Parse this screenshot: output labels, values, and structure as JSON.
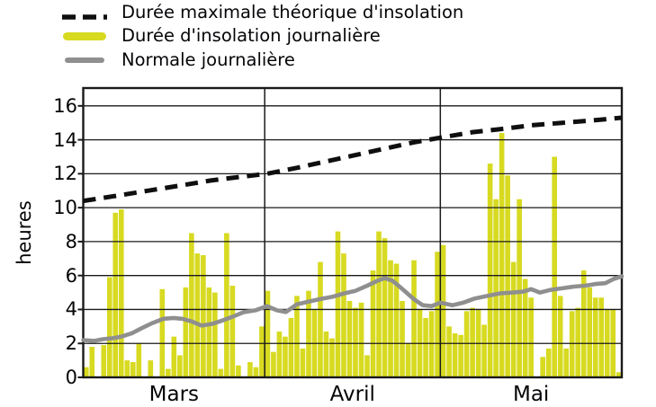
{
  "colors": {
    "background": "#ffffff",
    "bar": "#d7da20",
    "line_normale": "#8f8f8f",
    "line_max": "#0f0f0f",
    "grid": "#1a1a1a",
    "text": "#050508"
  },
  "legend": [
    {
      "id": "max",
      "label": "Durée maximale théorique d'insolation",
      "swatch": "dashed-line"
    },
    {
      "id": "insolation",
      "label": "Durée d'insolation journalière",
      "swatch": "bar"
    },
    {
      "id": "normale",
      "label": "Normale journalière",
      "swatch": "line"
    }
  ],
  "y_axis": {
    "label": "heures",
    "ticks": [
      0,
      2,
      4,
      6,
      8,
      10,
      12,
      14,
      16
    ],
    "max_displayed": 17.05
  },
  "x_axis": {
    "months": [
      {
        "label": "Mars",
        "days": 31
      },
      {
        "label": "Avril",
        "days": 30
      },
      {
        "label": "Mai",
        "days": 31
      }
    ]
  },
  "chart_data": {
    "type": "bar",
    "unit": "heures",
    "title": "",
    "ylim": [
      0,
      17.05
    ],
    "grid": true,
    "legend_position": "top-left",
    "series": [
      {
        "name": "Durée d'insolation journalière",
        "type": "bar",
        "values_by_month": {
          "Mars": [
            0.6,
            1.8,
            0,
            1.9,
            5.9,
            9.7,
            9.9,
            1.0,
            0.9,
            2.0,
            0,
            1.0,
            0,
            5.2,
            0.5,
            2.4,
            1.3,
            5.3,
            8.5,
            7.3,
            7.2,
            5.3,
            5.0,
            0.5,
            8.5,
            5.4,
            0.7,
            0,
            0.9,
            0.6,
            3.0
          ],
          "Avril": [
            5.1,
            1.5,
            2.7,
            2.4,
            3.5,
            4.8,
            1.7,
            5.1,
            4.0,
            6.8,
            2.7,
            2.3,
            8.6,
            7.3,
            4.5,
            4.1,
            4.4,
            1.3,
            6.3,
            8.6,
            8.2,
            6.9,
            6.7,
            4.5,
            2.0,
            6.9,
            4.0,
            3.5,
            3.9,
            7.4
          ],
          "Mai": [
            7.8,
            3.0,
            2.6,
            2.5,
            3.9,
            4.1,
            4.0,
            3.1,
            12.6,
            10.5,
            14.4,
            11.9,
            6.8,
            10.5,
            5.8,
            4.7,
            0,
            1.2,
            1.7,
            13.0,
            4.8,
            1.7,
            3.9,
            4.1,
            6.3,
            5.3,
            4.7,
            4.7,
            4.0,
            4.0,
            0.3
          ]
        }
      },
      {
        "name": "Durée maximale théorique d'insolation",
        "type": "line",
        "style": "dashed",
        "points_day_hours": [
          [
            0,
            10.4
          ],
          [
            5.7,
            10.7
          ],
          [
            11,
            11.0
          ],
          [
            16.5,
            11.3
          ],
          [
            21.8,
            11.6
          ],
          [
            26.5,
            11.8
          ],
          [
            31.4,
            12.0
          ],
          [
            36.5,
            12.35
          ],
          [
            41.1,
            12.7
          ],
          [
            46.5,
            13.1
          ],
          [
            51.8,
            13.5
          ],
          [
            56.5,
            13.85
          ],
          [
            61.4,
            14.15
          ],
          [
            66.5,
            14.45
          ],
          [
            71.8,
            14.65
          ],
          [
            76.5,
            14.85
          ],
          [
            81.8,
            15.0
          ],
          [
            87.2,
            15.15
          ],
          [
            92,
            15.3
          ]
        ]
      },
      {
        "name": "Normale journalière",
        "type": "line",
        "style": "solid",
        "points_day_hours": [
          [
            0,
            2.2
          ],
          [
            1.9,
            2.15
          ],
          [
            3.4,
            2.25
          ],
          [
            4.9,
            2.3
          ],
          [
            6.5,
            2.4
          ],
          [
            8.3,
            2.6
          ],
          [
            10,
            2.9
          ],
          [
            11.8,
            3.2
          ],
          [
            13.7,
            3.45
          ],
          [
            15.4,
            3.5
          ],
          [
            16.9,
            3.45
          ],
          [
            18.5,
            3.3
          ],
          [
            20.2,
            3.05
          ],
          [
            22,
            3.15
          ],
          [
            23.8,
            3.35
          ],
          [
            25.7,
            3.6
          ],
          [
            27.5,
            3.85
          ],
          [
            29.4,
            3.95
          ],
          [
            31.4,
            4.2
          ],
          [
            33.1,
            3.95
          ],
          [
            34.6,
            3.85
          ],
          [
            36.5,
            4.3
          ],
          [
            38.3,
            4.45
          ],
          [
            40.3,
            4.6
          ],
          [
            42.6,
            4.75
          ],
          [
            44.6,
            4.95
          ],
          [
            46.5,
            5.1
          ],
          [
            48.5,
            5.4
          ],
          [
            50.3,
            5.7
          ],
          [
            51.5,
            5.85
          ],
          [
            52.8,
            5.7
          ],
          [
            54.2,
            5.3
          ],
          [
            55.2,
            5.0
          ],
          [
            56.5,
            4.6
          ],
          [
            58,
            4.25
          ],
          [
            59.5,
            4.2
          ],
          [
            61,
            4.4
          ],
          [
            63.1,
            4.25
          ],
          [
            64.9,
            4.4
          ],
          [
            66.9,
            4.65
          ],
          [
            69.1,
            4.8
          ],
          [
            71.2,
            4.95
          ],
          [
            73.4,
            5.0
          ],
          [
            75.2,
            5.05
          ],
          [
            76.5,
            5.2
          ],
          [
            78,
            5.0
          ],
          [
            79.8,
            5.15
          ],
          [
            81.8,
            5.25
          ],
          [
            83.8,
            5.35
          ],
          [
            85.7,
            5.4
          ],
          [
            87.5,
            5.5
          ],
          [
            89.2,
            5.55
          ],
          [
            90.6,
            5.8
          ],
          [
            92,
            5.95
          ]
        ]
      }
    ]
  }
}
